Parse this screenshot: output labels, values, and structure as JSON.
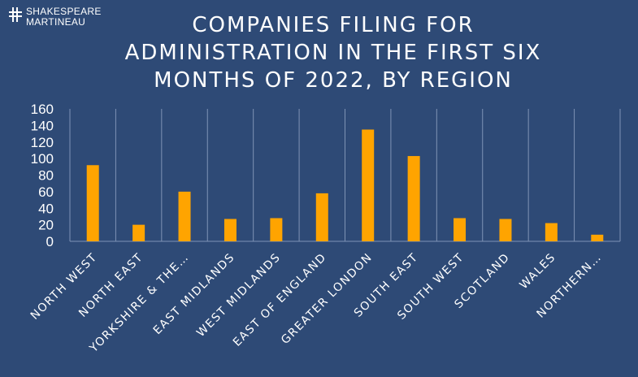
{
  "brand": {
    "line1": "SHAKESPEARE",
    "line2": "MARTINEAU"
  },
  "title_lines": [
    "COMPANIES FILING FOR",
    "ADMINISTRATION IN THE FIRST SIX",
    "MONTHS OF 2022, BY REGION"
  ],
  "colors": {
    "background": "#2e4a76",
    "bar": "#ffa400",
    "grid": "#7f93b5",
    "text": "#ffffff"
  },
  "chart_data": {
    "type": "bar",
    "title": "COMPANIES FILING FOR ADMINISTRATION IN THE FIRST SIX MONTHS OF 2022, BY REGION",
    "categories": [
      "NORTH WEST",
      "NORTH EAST",
      "YORKSHIRE & THE…",
      "EAST MIDLANDS",
      "WEST MIDLANDS",
      "EAST OF ENGLAND",
      "GREATER LONDON",
      "SOUTH EAST",
      "SOUTH WEST",
      "SCOTLAND",
      "WALES",
      "NORTHERN…"
    ],
    "values": [
      92,
      20,
      60,
      27,
      28,
      58,
      135,
      103,
      28,
      27,
      22,
      8
    ],
    "yticks": [
      0,
      20,
      40,
      60,
      80,
      100,
      120,
      140,
      160
    ],
    "ylim": [
      0,
      160
    ],
    "xlabel": "",
    "ylabel": "",
    "grid": "vertical",
    "legend": "none"
  }
}
